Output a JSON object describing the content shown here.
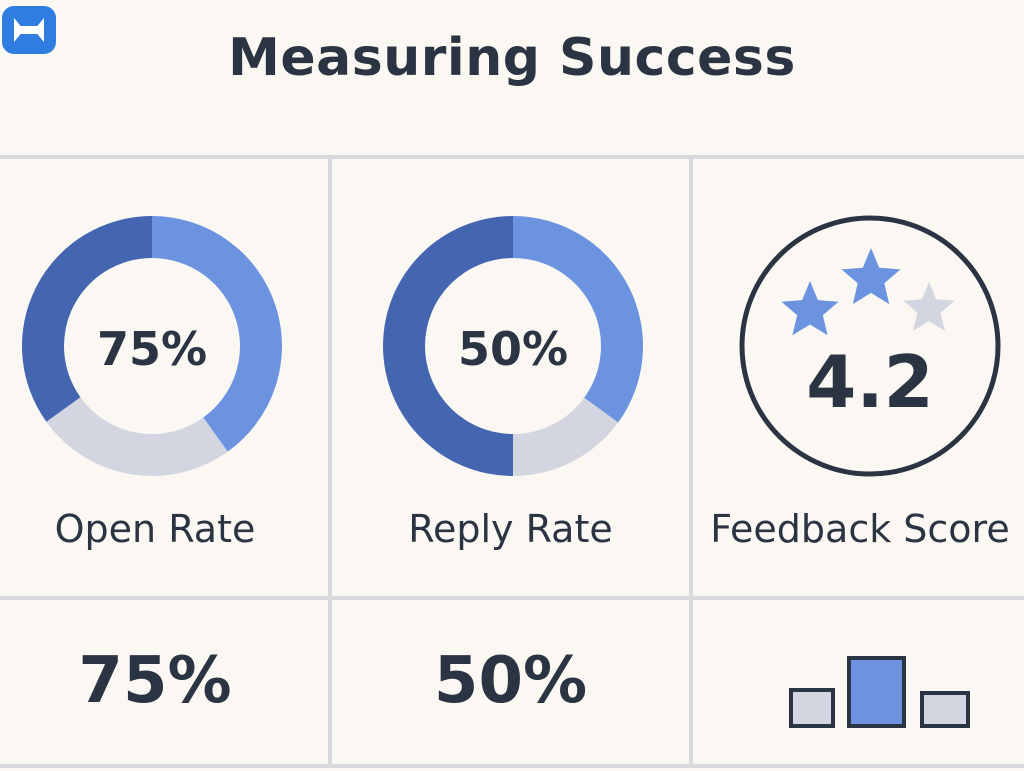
{
  "title": "Measuring Success",
  "colors": {
    "primary": "#6b93e0",
    "primary_dark": "#4466b0",
    "muted": "#d3d6e0",
    "text": "#2b3442",
    "background": "#fbf8f3",
    "grid": "#d9d9dd"
  },
  "metrics": [
    {
      "label": "Open Rate",
      "display": "75%",
      "value": 75,
      "bottom_value": "75%"
    },
    {
      "label": "Reply Rate",
      "display": "50%",
      "value": 50,
      "bottom_value": "50%"
    },
    {
      "label": "Feedback Score",
      "display": "4.2",
      "stars": 3,
      "filled_stars": 2,
      "bottom_icon": "bar-chart-icon"
    }
  ]
}
